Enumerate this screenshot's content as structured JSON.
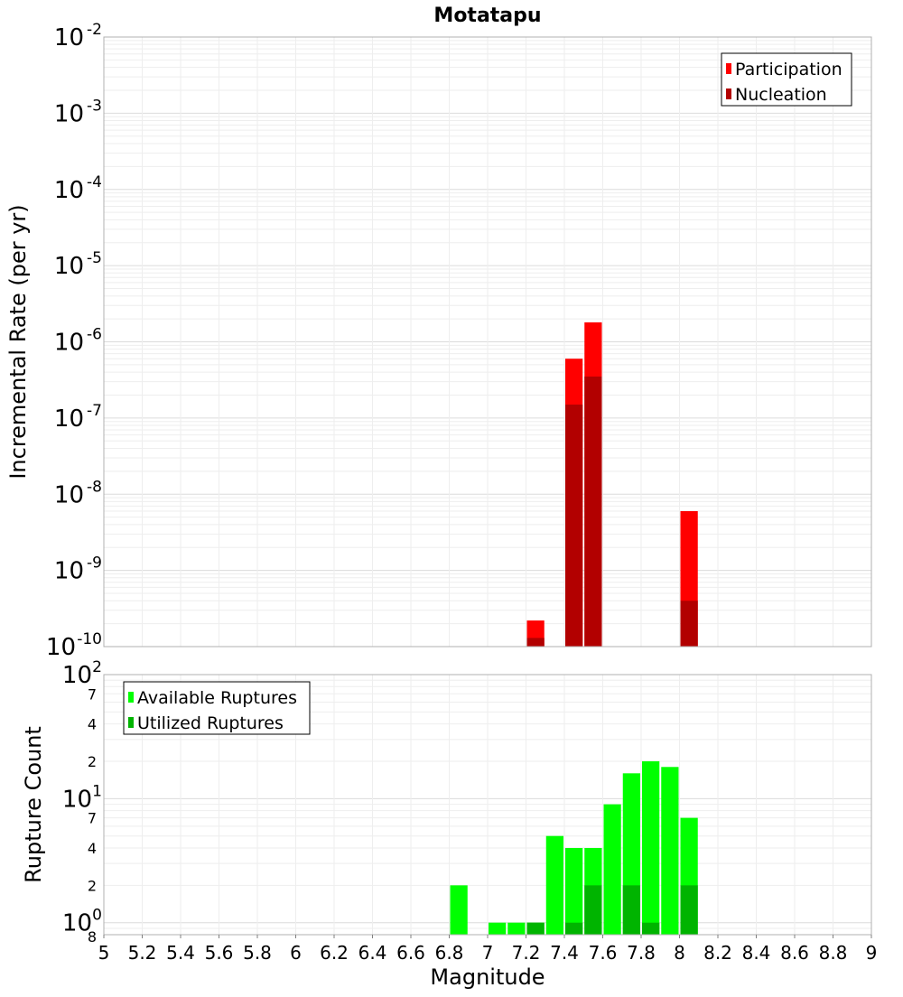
{
  "chart_data": [
    {
      "type": "bar",
      "title": "Motatapu",
      "ylabel": "Incremental Rate (per yr)",
      "yscale": "log",
      "ylim": [
        1e-10,
        0.01
      ],
      "xlim": [
        5,
        9
      ],
      "grid": true,
      "legend_position": "top-right",
      "y_tick_labels": [
        {
          "base": "10",
          "exp": "-2"
        },
        {
          "base": "10",
          "exp": "-3"
        },
        {
          "base": "10",
          "exp": "-4"
        },
        {
          "base": "10",
          "exp": "-5"
        },
        {
          "base": "10",
          "exp": "-6"
        },
        {
          "base": "10",
          "exp": "-7"
        },
        {
          "base": "10",
          "exp": "-8"
        },
        {
          "base": "10",
          "exp": "-9"
        },
        {
          "base": "10",
          "exp": "-10"
        }
      ],
      "series": [
        {
          "name": "Participation",
          "color": "#ff0000",
          "points": [
            {
              "x": 7.25,
              "y": 2.2e-10
            },
            {
              "x": 7.45,
              "y": 6e-07
            },
            {
              "x": 7.55,
              "y": 1.8e-06
            },
            {
              "x": 8.05,
              "y": 6e-09
            }
          ]
        },
        {
          "name": "Nucleation",
          "color": "#b20000",
          "points": [
            {
              "x": 7.25,
              "y": 1.3e-10
            },
            {
              "x": 7.45,
              "y": 1.5e-07
            },
            {
              "x": 7.55,
              "y": 3.5e-07
            },
            {
              "x": 8.05,
              "y": 4e-10
            }
          ]
        }
      ]
    },
    {
      "type": "bar",
      "xlabel": "Magnitude",
      "ylabel": "Rupture Count",
      "yscale": "log",
      "ylim": [
        0.8,
        100
      ],
      "xlim": [
        5,
        9
      ],
      "grid": true,
      "legend_position": "top-left",
      "x_tick_labels": [
        "5",
        "5.2",
        "5.4",
        "5.6",
        "5.8",
        "6",
        "6.2",
        "6.4",
        "6.6",
        "6.8",
        "7",
        "7.2",
        "7.4",
        "7.6",
        "7.8",
        "8",
        "8.2",
        "8.4",
        "8.6",
        "8.8",
        "9"
      ],
      "y_major_labels": [
        {
          "base": "10",
          "exp": "2",
          "value": 100
        },
        {
          "base": "10",
          "exp": "1",
          "value": 10
        },
        {
          "base": "10",
          "exp": "0",
          "value": 1
        }
      ],
      "y_minor_labels": [
        {
          "label": "7",
          "value": 70
        },
        {
          "label": "4",
          "value": 40
        },
        {
          "label": "2",
          "value": 20
        },
        {
          "label": "7",
          "value": 7
        },
        {
          "label": "4",
          "value": 4
        },
        {
          "label": "2",
          "value": 2
        },
        {
          "label": "8",
          "value": 0.8
        }
      ],
      "series": [
        {
          "name": "Available Ruptures",
          "color": "#00ff00",
          "points": [
            {
              "x": 6.85,
              "y": 2
            },
            {
              "x": 7.05,
              "y": 1
            },
            {
              "x": 7.15,
              "y": 1
            },
            {
              "x": 7.25,
              "y": 1
            },
            {
              "x": 7.35,
              "y": 5
            },
            {
              "x": 7.45,
              "y": 4
            },
            {
              "x": 7.55,
              "y": 4
            },
            {
              "x": 7.65,
              "y": 9
            },
            {
              "x": 7.75,
              "y": 16
            },
            {
              "x": 7.85,
              "y": 20
            },
            {
              "x": 7.95,
              "y": 18
            },
            {
              "x": 8.05,
              "y": 7
            }
          ]
        },
        {
          "name": "Utilized Ruptures",
          "color": "#00b400",
          "points": [
            {
              "x": 7.25,
              "y": 1
            },
            {
              "x": 7.45,
              "y": 1
            },
            {
              "x": 7.55,
              "y": 2
            },
            {
              "x": 7.75,
              "y": 2
            },
            {
              "x": 7.85,
              "y": 1
            },
            {
              "x": 8.05,
              "y": 2
            }
          ]
        }
      ]
    }
  ]
}
